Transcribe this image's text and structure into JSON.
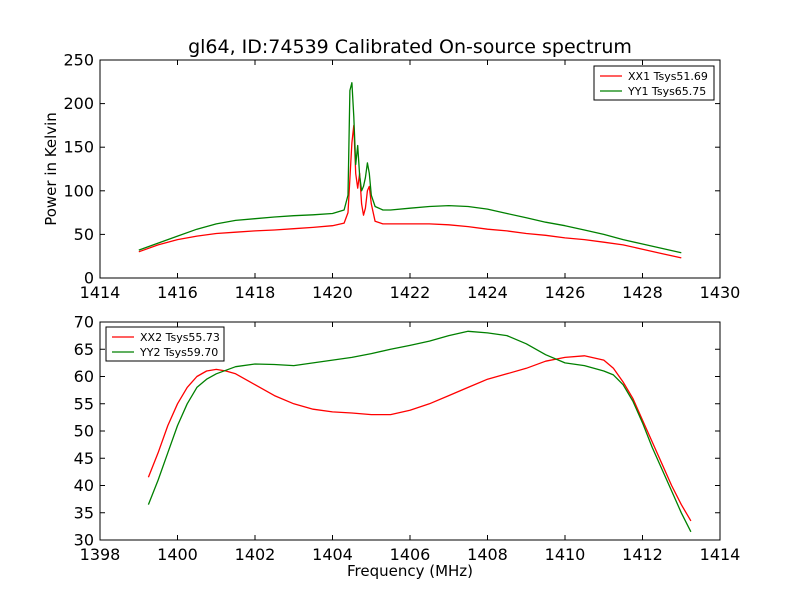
{
  "chart_data": {
    "title": "gl64, ID:74539 Calibrated On-source spectrum",
    "xlabel": "Frequency (MHz)",
    "panels": [
      {
        "type": "line",
        "ylabel": "Power in Kelvin",
        "xlim": [
          1414,
          1430
        ],
        "ylim": [
          0,
          250
        ],
        "xticks": [
          1414,
          1416,
          1418,
          1420,
          1422,
          1424,
          1426,
          1428,
          1430
        ],
        "yticks": [
          0,
          50,
          100,
          150,
          200,
          250
        ],
        "legend_position": "top-right",
        "series": [
          {
            "name": "XX1 Tsys51.69",
            "color": "#ff0000",
            "x": [
              1415.0,
              1415.5,
              1416.0,
              1416.5,
              1417.0,
              1417.5,
              1418.0,
              1418.5,
              1419.0,
              1419.5,
              1420.0,
              1420.3,
              1420.4,
              1420.5,
              1420.55,
              1420.6,
              1420.65,
              1420.7,
              1420.75,
              1420.8,
              1420.85,
              1420.9,
              1420.95,
              1421.0,
              1421.1,
              1421.3,
              1421.5,
              1422.0,
              1422.5,
              1423.0,
              1423.5,
              1424.0,
              1424.5,
              1425.0,
              1425.5,
              1426.0,
              1426.5,
              1427.0,
              1427.5,
              1428.0,
              1428.5,
              1429.0
            ],
            "values": [
              30,
              38,
              44,
              48,
              51,
              52.5,
              54,
              55,
              56.5,
              58,
              60,
              63,
              75,
              155,
              175,
              120,
              103,
              120,
              85,
              72,
              80,
              100,
              105,
              85,
              65,
              62,
              62,
              62,
              62,
              61,
              59,
              56,
              54,
              51,
              49,
              46,
              44,
              41,
              38,
              33,
              28,
              23
            ]
          },
          {
            "name": "YY1 Tsys65.75",
            "color": "#008000",
            "x": [
              1415.0,
              1415.5,
              1416.0,
              1416.5,
              1417.0,
              1417.5,
              1418.0,
              1418.5,
              1419.0,
              1419.5,
              1420.0,
              1420.3,
              1420.4,
              1420.45,
              1420.5,
              1420.55,
              1420.6,
              1420.65,
              1420.7,
              1420.75,
              1420.8,
              1420.85,
              1420.9,
              1420.95,
              1421.0,
              1421.1,
              1421.3,
              1421.5,
              1422.0,
              1422.5,
              1423.0,
              1423.5,
              1424.0,
              1424.5,
              1425.0,
              1425.5,
              1426.0,
              1426.5,
              1427.0,
              1427.5,
              1428.0,
              1428.5,
              1429.0
            ],
            "values": [
              32,
              40,
              48,
              56,
              62,
              66,
              68,
              70,
              71.5,
              72.5,
              74,
              78,
              95,
              215,
              224,
              185,
              130,
              152,
              118,
              100,
              105,
              115,
              132,
              120,
              95,
              82,
              78,
              78,
              80,
              82,
              83,
              82,
              79,
              74,
              69,
              64,
              60,
              55,
              50,
              44,
              39,
              34,
              29
            ]
          }
        ]
      },
      {
        "type": "line",
        "ylabel": "",
        "xlim": [
          1398,
          1414
        ],
        "ylim": [
          30,
          70
        ],
        "xticks": [
          1398,
          1400,
          1402,
          1404,
          1406,
          1408,
          1410,
          1412,
          1414
        ],
        "yticks": [
          30,
          35,
          40,
          45,
          50,
          55,
          60,
          65,
          70
        ],
        "legend_position": "top-left",
        "series": [
          {
            "name": "XX2 Tsys55.73",
            "color": "#ff0000",
            "x": [
              1399.25,
              1399.5,
              1399.75,
              1400.0,
              1400.25,
              1400.5,
              1400.75,
              1401.0,
              1401.25,
              1401.5,
              1402.0,
              1402.5,
              1403.0,
              1403.5,
              1404.0,
              1404.5,
              1405.0,
              1405.5,
              1406.0,
              1406.5,
              1407.0,
              1407.5,
              1408.0,
              1408.5,
              1409.0,
              1409.5,
              1410.0,
              1410.5,
              1411.0,
              1411.25,
              1411.5,
              1411.75,
              1412.0,
              1412.25,
              1412.5,
              1412.75,
              1413.0,
              1413.25
            ],
            "values": [
              41.5,
              46,
              51,
              55,
              58,
              60,
              61,
              61.3,
              61,
              60.5,
              58.5,
              56.5,
              55,
              54,
              53.5,
              53.3,
              53,
              53,
              53.8,
              55,
              56.5,
              58,
              59.5,
              60.5,
              61.5,
              62.8,
              63.5,
              63.8,
              63,
              61.5,
              59,
              56,
              52,
              48,
              44,
              40,
              36.5,
              33.5
            ]
          },
          {
            "name": "YY2 Tsys59.70",
            "color": "#008000",
            "x": [
              1399.25,
              1399.5,
              1399.75,
              1400.0,
              1400.25,
              1400.5,
              1400.75,
              1401.0,
              1401.5,
              1402.0,
              1402.5,
              1403.0,
              1403.5,
              1404.0,
              1404.5,
              1405.0,
              1405.5,
              1406.0,
              1406.5,
              1407.0,
              1407.5,
              1408.0,
              1408.5,
              1409.0,
              1409.5,
              1410.0,
              1410.5,
              1411.0,
              1411.25,
              1411.5,
              1411.75,
              1412.0,
              1412.25,
              1412.5,
              1412.75,
              1413.0,
              1413.25
            ],
            "values": [
              36.5,
              41,
              46,
              51,
              55,
              58,
              59.5,
              60.5,
              61.8,
              62.3,
              62.2,
              62,
              62.5,
              63,
              63.5,
              64.2,
              65,
              65.7,
              66.5,
              67.5,
              68.3,
              68,
              67.5,
              66,
              64,
              62.5,
              62,
              61,
              60.3,
              58.5,
              55.5,
              51.5,
              47,
              43,
              39,
              35,
              31.5
            ]
          }
        ]
      }
    ]
  }
}
